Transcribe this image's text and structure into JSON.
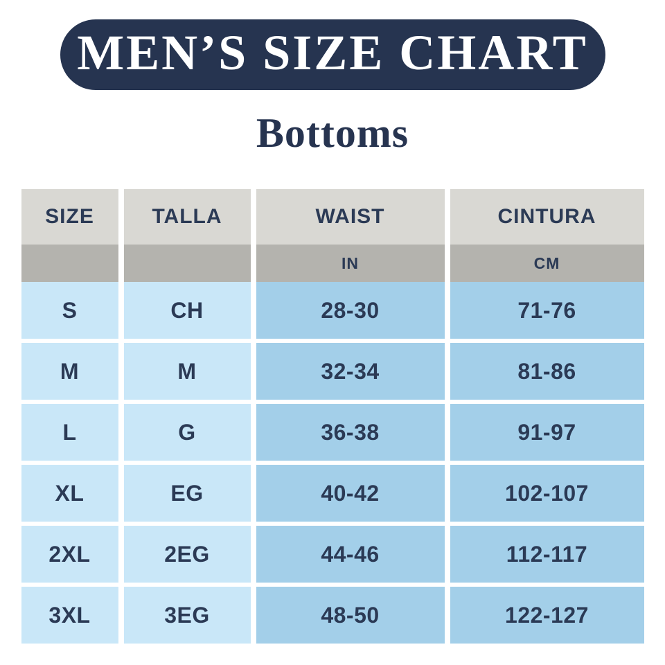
{
  "header": {
    "title": "MEN’S SIZE CHART",
    "subtitle": "Bottoms"
  },
  "table": {
    "columns": [
      {
        "key": "size",
        "label": "SIZE",
        "unit": ""
      },
      {
        "key": "talla",
        "label": "TALLA",
        "unit": ""
      },
      {
        "key": "waist",
        "label": "WAIST",
        "unit": "IN"
      },
      {
        "key": "cintura",
        "label": "CINTURA",
        "unit": "CM"
      }
    ],
    "rows": [
      [
        "S",
        "CH",
        "28-30",
        "71-76"
      ],
      [
        "M",
        "M",
        "32-34",
        "81-86"
      ],
      [
        "L",
        "G",
        "36-38",
        "91-97"
      ],
      [
        "XL",
        "EG",
        "40-42",
        "102-107"
      ],
      [
        "2XL",
        "2EG",
        "44-46",
        "112-117"
      ],
      [
        "3XL",
        "3EG",
        "48-50",
        "122-127"
      ]
    ]
  },
  "colors": {
    "banner_navy": "#263450",
    "text_navy": "#2b3a55",
    "header_gray": "#d9d8d3",
    "units_gray": "#b4b3ae",
    "light_blue": "#c9e7f8",
    "medium_blue": "#a3cfe9",
    "background": "#ffffff",
    "title_text": "#ffffff"
  },
  "chart_data": {
    "type": "table",
    "title": "MEN’S SIZE CHART",
    "subtitle": "Bottoms",
    "columns": [
      "SIZE",
      "TALLA",
      "WAIST (IN)",
      "CINTURA (CM)"
    ],
    "rows": [
      [
        "S",
        "CH",
        "28-30",
        "71-76"
      ],
      [
        "M",
        "M",
        "32-34",
        "81-86"
      ],
      [
        "L",
        "G",
        "36-38",
        "91-97"
      ],
      [
        "XL",
        "EG",
        "40-42",
        "102-107"
      ],
      [
        "2XL",
        "2EG",
        "44-46",
        "112-117"
      ],
      [
        "3XL",
        "3EG",
        "48-50",
        "122-127"
      ]
    ],
    "legend_position": "none",
    "grid": "off"
  }
}
